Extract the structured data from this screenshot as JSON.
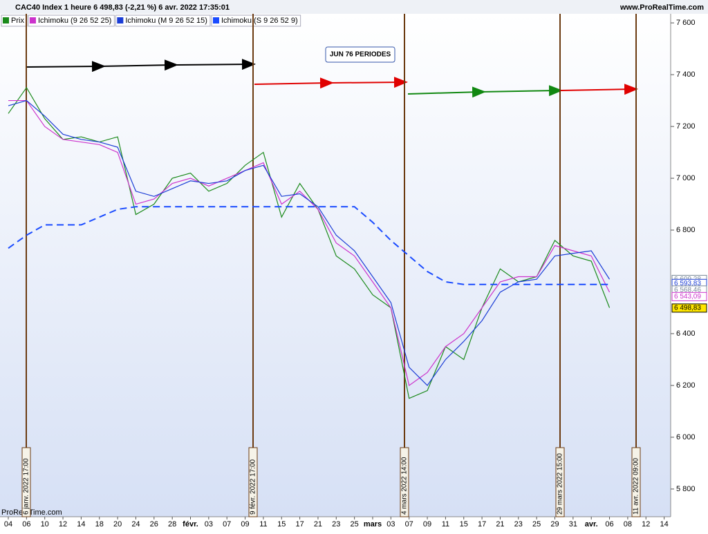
{
  "chart_data": {
    "type": "line",
    "title": "CAC40 Index 1 heure 6 498,83 (-2,21 %) 6 avr. 2022 17:35:01",
    "site": "www.ProRealTime.com",
    "footer": "ProRealTime.com",
    "annotation": "JUN 76 PERIODES",
    "vertical_markers": [
      "6 janv. 2022 17:00",
      "9 févr. 2022 17:00",
      "4 mars 2022 14:00",
      "29 mars 2022 15:00",
      "11 avr. 2022 09:00"
    ],
    "categories": [
      "04",
      "06",
      "10",
      "12",
      "14",
      "18",
      "20",
      "24",
      "26",
      "28",
      "févr.",
      "03",
      "07",
      "09",
      "11",
      "15",
      "17",
      "21",
      "23",
      "25",
      "mars",
      "03",
      "07",
      "09",
      "11",
      "15",
      "17",
      "21",
      "23",
      "25",
      "29",
      "31",
      "avr.",
      "06",
      "08",
      "12",
      "14"
    ],
    "ylim": [
      5693,
      7635
    ],
    "yticks": [
      {
        "value": 7600,
        "label": "7 600"
      },
      {
        "value": 7400,
        "label": "7 400"
      },
      {
        "value": 7200,
        "label": "7 200"
      },
      {
        "value": 7000,
        "label": "7 000"
      },
      {
        "value": 6800,
        "label": "6 800"
      },
      {
        "value": 6400,
        "label": "6 400"
      },
      {
        "value": 6200,
        "label": "6 200"
      },
      {
        "value": 6000,
        "label": "6 000"
      },
      {
        "value": 5800,
        "label": "5 800"
      }
    ],
    "series": [
      {
        "name": "Prix",
        "color": "#1b8a1b",
        "dashed": false,
        "values": [
          7250,
          7350,
          7230,
          7150,
          7160,
          7140,
          7160,
          6860,
          6900,
          7000,
          7020,
          6950,
          6980,
          7050,
          7100,
          6850,
          6980,
          6880,
          6700,
          6650,
          6550,
          6500,
          6150,
          6180,
          6350,
          6300,
          6500,
          6650,
          6600,
          6620,
          6760,
          6700,
          6680,
          6500,
          null,
          null,
          null
        ]
      },
      {
        "name": "Ichimoku (9 26 52 25)",
        "color": "#cc33cc",
        "dashed": false,
        "values": [
          7300,
          7300,
          7200,
          7150,
          7140,
          7130,
          7100,
          6900,
          6920,
          6980,
          7000,
          6970,
          7000,
          7030,
          7060,
          6900,
          6950,
          6880,
          6750,
          6700,
          6600,
          6500,
          6200,
          6250,
          6350,
          6400,
          6500,
          6600,
          6620,
          6620,
          6740,
          6720,
          6700,
          6560,
          null,
          null,
          null
        ]
      },
      {
        "name": "Ichimoku (M 9 26 52 15)",
        "color": "#1a3cd6",
        "dashed": false,
        "values": [
          7280,
          7300,
          7240,
          7170,
          7150,
          7140,
          7120,
          6950,
          6930,
          6960,
          6990,
          6980,
          6990,
          7030,
          7050,
          6930,
          6940,
          6890,
          6780,
          6720,
          6620,
          6520,
          6270,
          6200,
          6300,
          6370,
          6450,
          6560,
          6600,
          6610,
          6700,
          6710,
          6720,
          6610,
          null,
          null,
          null
        ]
      },
      {
        "name": "Ichimoku (S 9 26 52 9)",
        "color": "#1a4bff",
        "dashed": true,
        "values": [
          6730,
          6780,
          6820,
          6820,
          6820,
          6850,
          6880,
          6890,
          6890,
          6890,
          6890,
          6890,
          6890,
          6890,
          6890,
          6890,
          6890,
          6890,
          6890,
          6890,
          6830,
          6760,
          6700,
          6640,
          6600,
          6590,
          6590,
          6590,
          6590,
          6590,
          6590,
          6590,
          6590,
          6590,
          null,
          null,
          null
        ]
      }
    ],
    "last_values": [
      {
        "value": 6609.28,
        "label": "6 609,28",
        "color": "#7a8a9a"
      },
      {
        "value": 6593.83,
        "label": "6 593,83",
        "color": "#1a3cd6"
      },
      {
        "value": 6568.46,
        "label": "6 568,46",
        "color": "#7a8a9a"
      },
      {
        "value": 6543.09,
        "label": "6 543,09",
        "color": "#cc33cc"
      },
      {
        "value": 6498.83,
        "label": "6 498,83",
        "color": "#000000"
      }
    ]
  }
}
